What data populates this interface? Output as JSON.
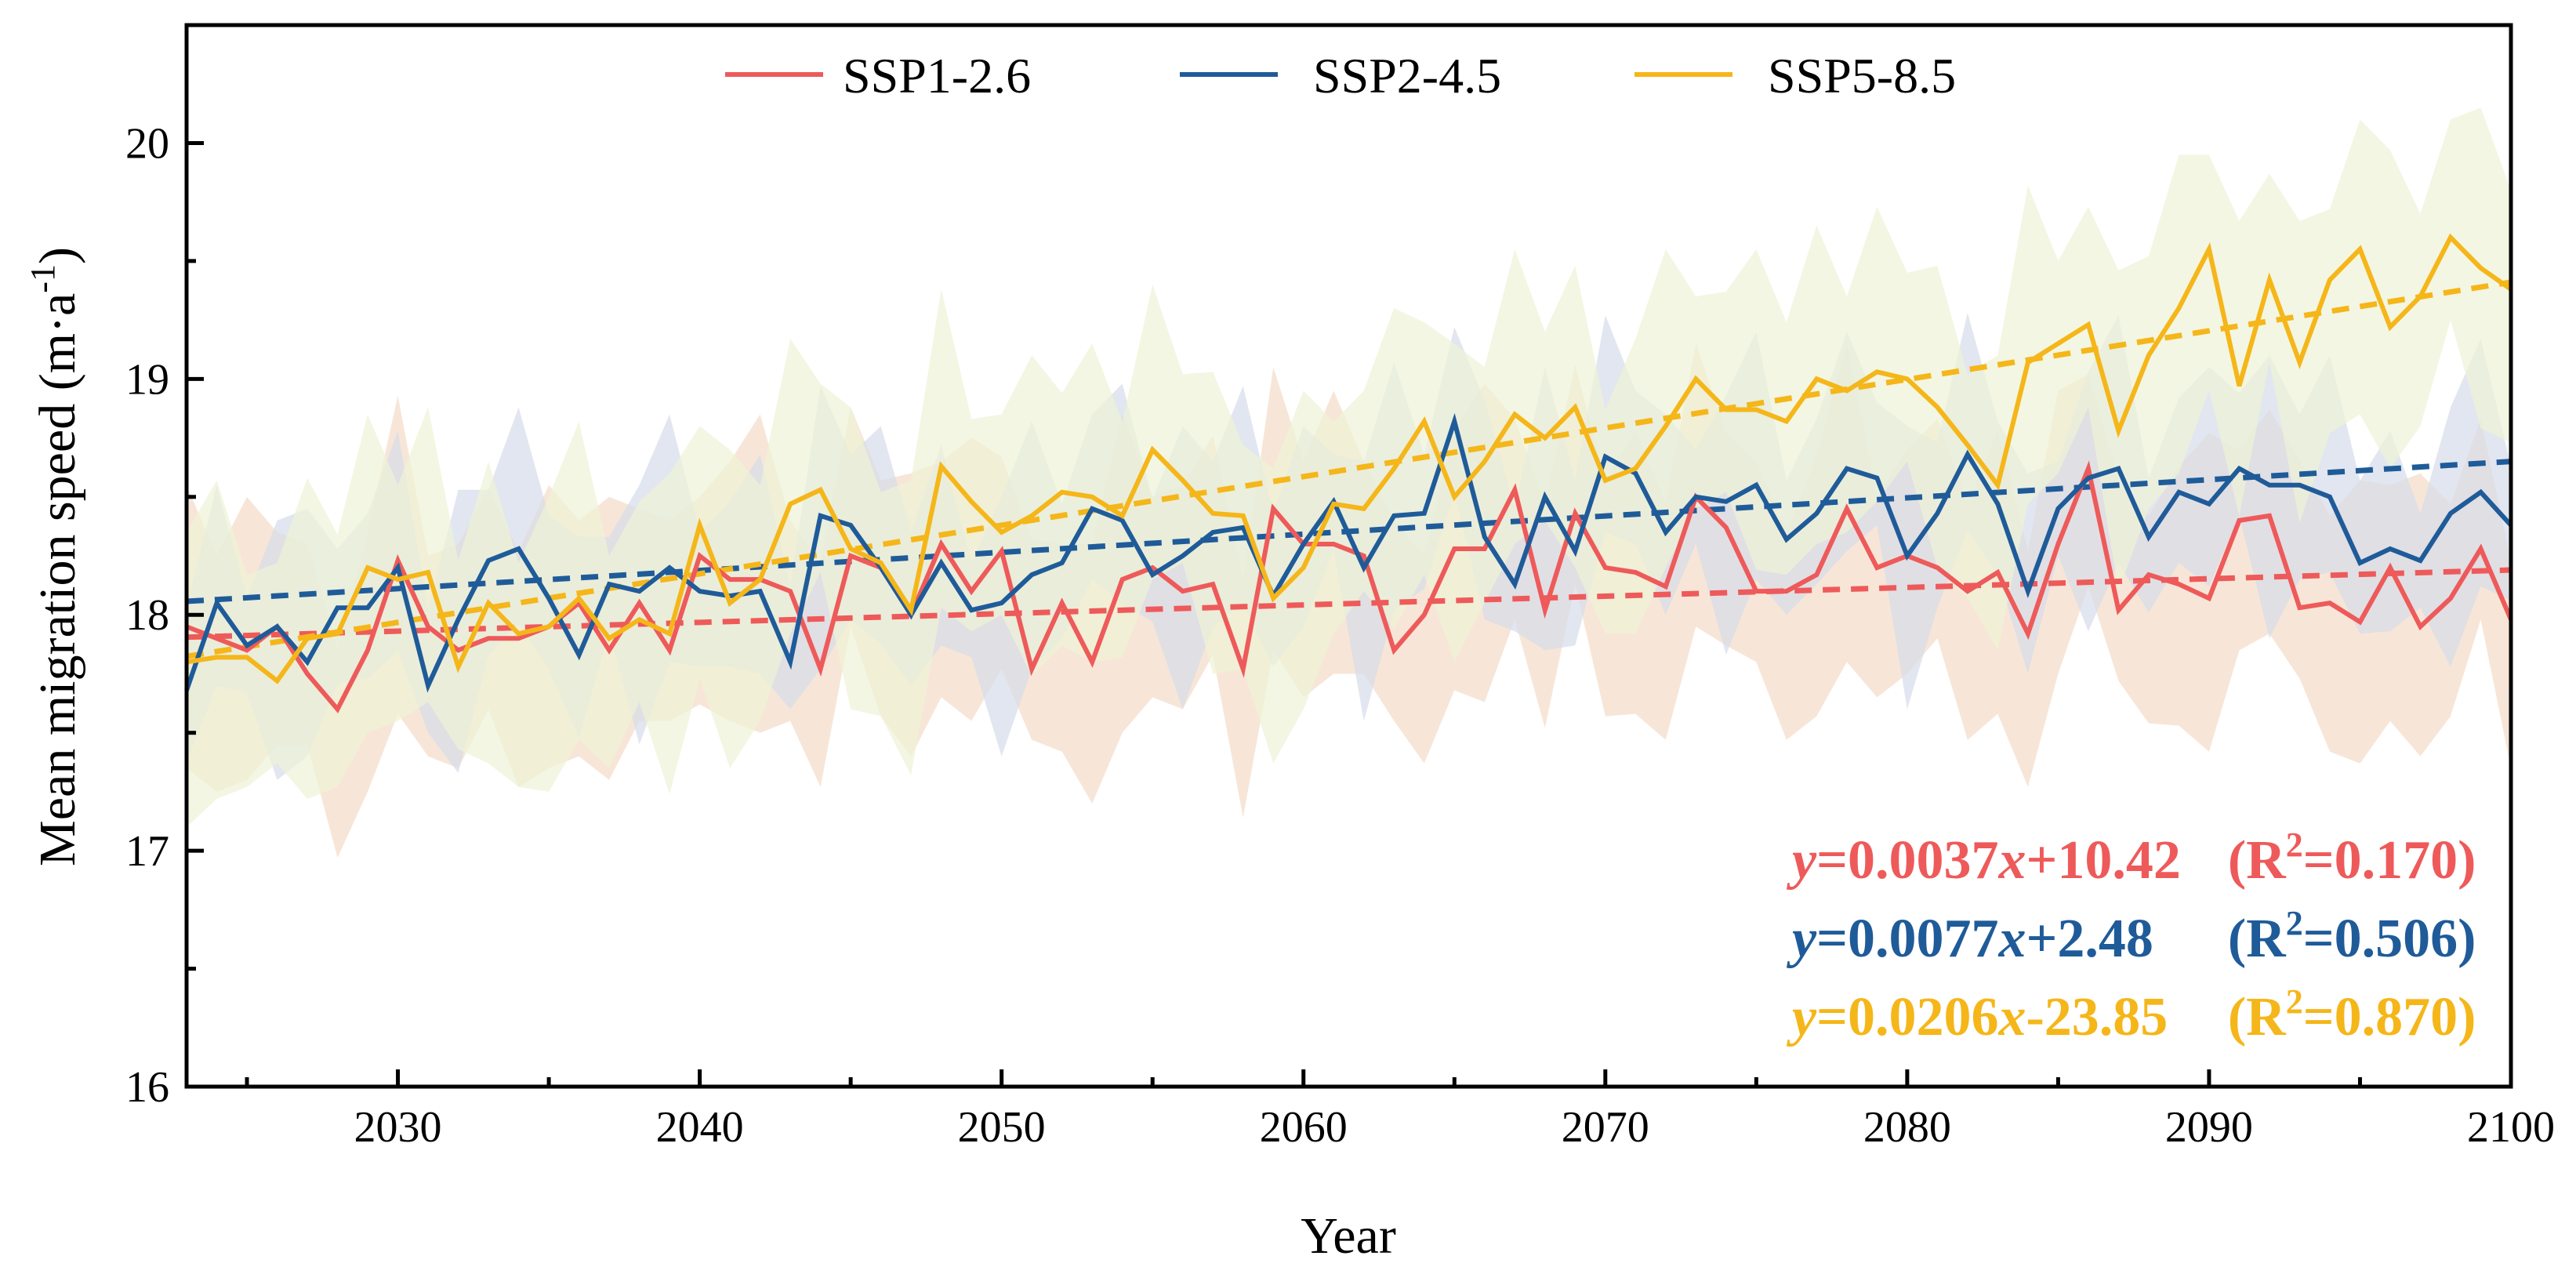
{
  "chart_data": {
    "type": "line",
    "title": "",
    "xlabel": "Year",
    "ylabel": "Mean migration speed (m·a⁻¹)",
    "ylabel_main": "Mean migration speed (m·a",
    "ylabel_sup": "-1",
    "ylabel_close": ")",
    "xlim": [
      2023,
      2100
    ],
    "ylim": [
      16,
      20.5
    ],
    "xticks": [
      "2030",
      "2040",
      "2050",
      "2060",
      "2070",
      "2080",
      "2090",
      "2100"
    ],
    "yticks": [
      "16",
      "17",
      "18",
      "19",
      "20"
    ],
    "legend_position": "top-center",
    "grid": false,
    "x_start": 2023,
    "series": [
      {
        "name": "SSP1-2.6",
        "color": "#EE5A5A",
        "band_color": "#F3DCC8",
        "band_halfwidth": 0.45,
        "trend": {
          "slope": 0.0037,
          "intercept": 10.42,
          "slope_text": "0.0037",
          "intercept_text": "+10.42",
          "r2_text": "0.170"
        },
        "values": [
          17.95,
          17.9,
          17.85,
          17.95,
          17.75,
          17.6,
          17.85,
          18.23,
          17.95,
          17.85,
          17.9,
          17.9,
          17.95,
          18.05,
          17.85,
          18.05,
          17.85,
          18.25,
          18.15,
          18.15,
          18.1,
          17.77,
          18.25,
          18.2,
          18.0,
          18.3,
          18.1,
          18.27,
          17.77,
          18.05,
          17.8,
          18.15,
          18.2,
          18.1,
          18.13,
          17.77,
          18.45,
          18.3,
          18.3,
          18.25,
          17.85,
          18.0,
          18.28,
          18.28,
          18.53,
          18.02,
          18.43,
          18.2,
          18.18,
          18.12,
          18.5,
          18.37,
          18.1,
          18.1,
          18.17,
          18.45,
          18.2,
          18.25,
          18.2,
          18.1,
          18.18,
          17.92,
          18.3,
          18.62,
          18.02,
          18.17,
          18.13,
          18.07,
          18.4,
          18.42,
          18.03,
          18.05,
          17.97,
          18.2,
          17.95,
          18.07,
          18.28,
          17.98
        ]
      },
      {
        "name": "SSP2-4.5",
        "color": "#1F5B99",
        "band_color": "#D5DBEA",
        "band_halfwidth": 0.4,
        "trend": {
          "slope": 0.0077,
          "intercept": 2.48,
          "slope_text": "0.0077",
          "intercept_text": "+2.48",
          "r2_text": "0.506"
        },
        "values": [
          17.68,
          18.05,
          17.87,
          17.95,
          17.8,
          18.03,
          18.03,
          18.2,
          17.7,
          17.98,
          18.23,
          18.28,
          18.07,
          17.83,
          18.13,
          18.1,
          18.2,
          18.1,
          18.08,
          18.1,
          17.8,
          18.42,
          18.38,
          18.2,
          18.0,
          18.22,
          18.02,
          18.05,
          18.17,
          18.22,
          18.45,
          18.4,
          18.17,
          18.25,
          18.35,
          18.37,
          18.08,
          18.3,
          18.48,
          18.2,
          18.42,
          18.43,
          18.82,
          18.33,
          18.13,
          18.5,
          18.27,
          18.67,
          18.6,
          18.35,
          18.5,
          18.48,
          18.55,
          18.32,
          18.43,
          18.62,
          18.58,
          18.25,
          18.43,
          18.68,
          18.47,
          18.1,
          18.45,
          18.58,
          18.62,
          18.33,
          18.52,
          18.47,
          18.62,
          18.55,
          18.55,
          18.5,
          18.22,
          18.28,
          18.23,
          18.43,
          18.52,
          18.38
        ]
      },
      {
        "name": "SSP5-8.5",
        "color": "#F5B619",
        "band_color": "#EEF2D6",
        "band_halfwidth": 0.5,
        "trend": {
          "slope": 0.0206,
          "intercept": -23.85,
          "slope_text": "0.0206",
          "intercept_text": "-23.85",
          "r2_text": "0.870"
        },
        "values": [
          17.8,
          17.82,
          17.82,
          17.72,
          17.9,
          17.92,
          18.2,
          18.15,
          18.18,
          17.78,
          18.05,
          17.92,
          17.95,
          18.07,
          17.9,
          17.98,
          17.92,
          18.38,
          18.05,
          18.15,
          18.47,
          18.53,
          18.28,
          18.22,
          18.02,
          18.63,
          18.48,
          18.35,
          18.42,
          18.52,
          18.5,
          18.42,
          18.7,
          18.57,
          18.43,
          18.42,
          18.07,
          18.2,
          18.47,
          18.45,
          18.62,
          18.82,
          18.5,
          18.65,
          18.85,
          18.75,
          18.88,
          18.57,
          18.62,
          18.8,
          19.0,
          18.87,
          18.87,
          18.82,
          19.0,
          18.95,
          19.03,
          19.0,
          18.88,
          18.72,
          18.55,
          19.07,
          19.15,
          19.23,
          18.78,
          19.1,
          19.3,
          19.55,
          18.97,
          19.42,
          19.07,
          19.42,
          19.55,
          19.22,
          19.35,
          19.6,
          19.47,
          19.38
        ]
      }
    ],
    "equation_parts": {
      "y": "y",
      "eq": "=",
      "x": "x",
      "r_open": "(R",
      "r_sup": "2",
      "r_eq": "=",
      "r_close": ")"
    }
  }
}
